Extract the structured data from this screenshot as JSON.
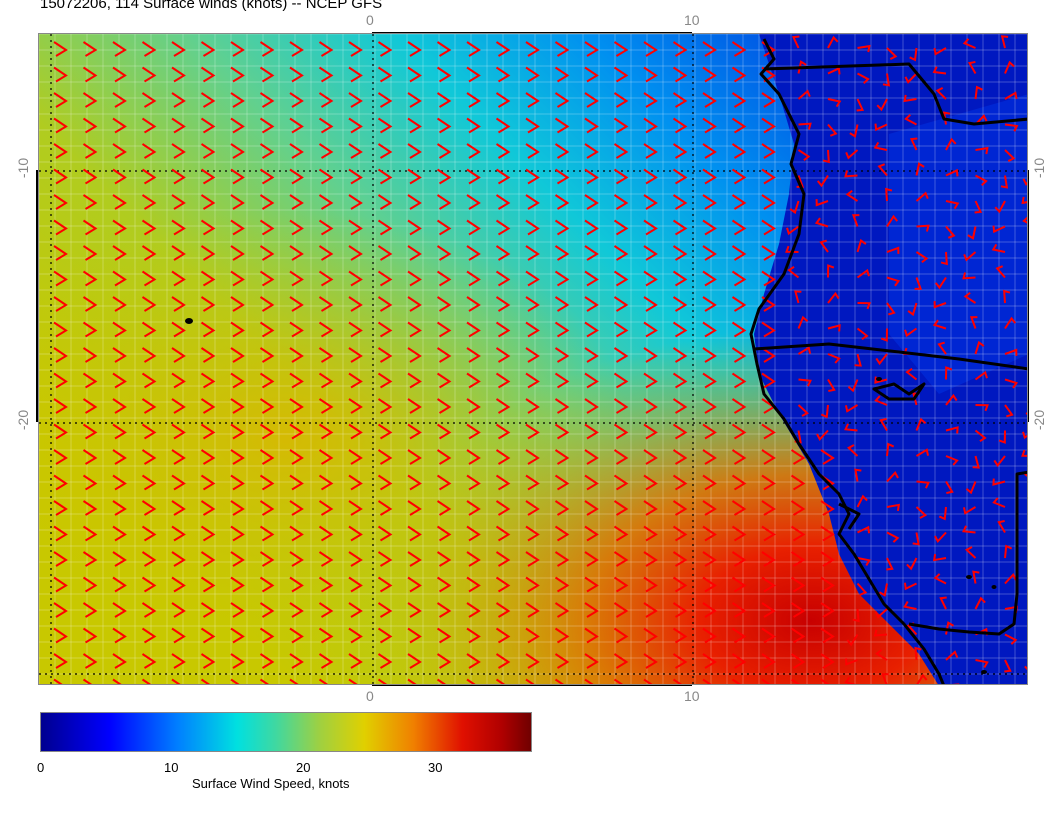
{
  "title": "15072206, 114 Surface winds (knots) -- NCEP GFS",
  "map": {
    "top_axis_ticks": [
      "0",
      "10"
    ],
    "bottom_axis_ticks": [
      "0",
      "10"
    ],
    "left_axis_ticks": [
      "-10",
      "-20"
    ],
    "right_axis_ticks": [
      "-10",
      "-20"
    ],
    "barb_color": "#ff0000",
    "coastline_color": "#000000"
  },
  "colorbar": {
    "ticks": [
      "0",
      "10",
      "20",
      "30"
    ],
    "label": "Surface Wind Speed, knots",
    "range": [
      0,
      37
    ],
    "colors": [
      "#00008f",
      "#0000ff",
      "#0080ff",
      "#00e0e0",
      "#a0d040",
      "#e0d000",
      "#f08000",
      "#e01000",
      "#700000"
    ]
  }
}
